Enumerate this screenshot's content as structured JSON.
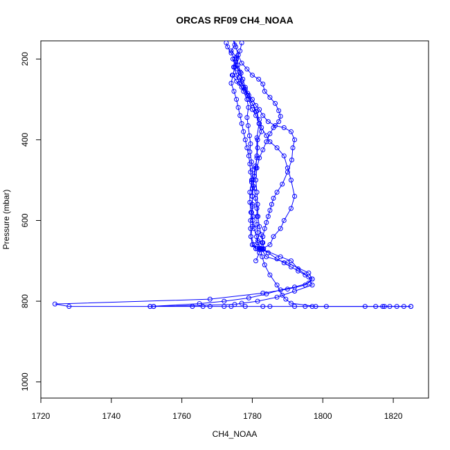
{
  "chart_data": {
    "type": "scatter",
    "title": "ORCAS RF09 CH4_NOAA",
    "xlabel": "CH4_NOAA",
    "ylabel": "Pressure (mbar)",
    "xlim": [
      1720,
      1830
    ],
    "ylim": [
      1040,
      155
    ],
    "y_reversed": true,
    "x_ticks": [
      1720,
      1740,
      1760,
      1780,
      1800,
      1820
    ],
    "y_ticks": [
      200,
      400,
      600,
      800,
      1000
    ],
    "grid": false,
    "legend": "none",
    "marker": "open-circle",
    "series": [
      {
        "color": "#0000ff",
        "points": [
          [
            1772.6,
            160
          ],
          [
            1773.0,
            170
          ],
          [
            1774.0,
            185
          ],
          [
            1775.0,
            200
          ],
          [
            1774.7,
            220
          ],
          [
            1775.6,
            240
          ],
          [
            1776.3,
            260
          ],
          [
            1777.5,
            280
          ],
          [
            1778.5,
            300
          ],
          [
            1778.9,
            320
          ],
          [
            1778.5,
            345
          ],
          [
            1778.8,
            365
          ],
          [
            1779.2,
            390
          ],
          [
            1779.5,
            410
          ],
          [
            1779.3,
            430
          ],
          [
            1779.8,
            455
          ],
          [
            1780.1,
            475
          ],
          [
            1780.1,
            500
          ],
          [
            1780.6,
            520
          ],
          [
            1780.9,
            545
          ],
          [
            1781.3,
            570
          ],
          [
            1781.3,
            590
          ],
          [
            1781.3,
            610
          ],
          [
            1781.6,
            630
          ],
          [
            1781.6,
            650
          ],
          [
            1781.5,
            670
          ],
          [
            1782.5,
            670
          ],
          [
            1784.0,
            690
          ],
          [
            1790.0,
            705
          ],
          [
            1796.0,
            730
          ],
          [
            1797.0,
            745
          ],
          [
            1795.0,
            760
          ],
          [
            1790.0,
            770
          ],
          [
            1783.0,
            780
          ],
          [
            1768.0,
            795
          ],
          [
            1724.0,
            807
          ],
          [
            1728.0,
            813
          ],
          [
            1751.0,
            813
          ],
          [
            1752.0,
            813
          ],
          [
            1763.0,
            813
          ],
          [
            1766.0,
            813
          ],
          [
            1768.0,
            813
          ],
          [
            1772.0,
            813
          ],
          [
            1774.0,
            813
          ],
          [
            1778.0,
            813
          ],
          [
            1783.0,
            813
          ],
          [
            1785.0,
            813
          ],
          [
            1792.0,
            813
          ],
          [
            1795.0,
            813
          ],
          [
            1797.0,
            813
          ],
          [
            1801.0,
            813
          ],
          [
            1812.0,
            813
          ],
          [
            1815.0,
            813
          ],
          [
            1817.0,
            813
          ],
          [
            1819.0,
            813
          ],
          [
            1821.0,
            813
          ],
          [
            1823.0,
            813
          ],
          [
            1825.0,
            813
          ]
        ]
      },
      {
        "color": "#0000ff",
        "points": [
          [
            1825.0,
            813
          ],
          [
            1817.5,
            813
          ],
          [
            1798.0,
            813
          ],
          [
            1791.0,
            805
          ],
          [
            1789.5,
            795
          ],
          [
            1788.5,
            785
          ],
          [
            1787.0,
            760
          ],
          [
            1785.0,
            735
          ],
          [
            1783.5,
            710
          ],
          [
            1782.8,
            690
          ],
          [
            1782.3,
            670
          ],
          [
            1781.6,
            655
          ],
          [
            1781.2,
            640
          ],
          [
            1780.5,
            620
          ],
          [
            1780.2,
            600
          ],
          [
            1779.6,
            580
          ],
          [
            1779.3,
            555
          ],
          [
            1779.3,
            530
          ],
          [
            1779.8,
            505
          ],
          [
            1780.6,
            490
          ],
          [
            1781.0,
            470
          ],
          [
            1781.3,
            440
          ],
          [
            1781.3,
            395
          ],
          [
            1781.9,
            360
          ],
          [
            1781.2,
            330
          ],
          [
            1780.0,
            310
          ],
          [
            1778.6,
            290
          ],
          [
            1777.5,
            270
          ],
          [
            1776.2,
            245
          ],
          [
            1775.8,
            225
          ],
          [
            1775.3,
            205
          ],
          [
            1776.0,
            190
          ],
          [
            1775.3,
            170
          ],
          [
            1774.8,
            150
          ]
        ]
      },
      {
        "color": "#0000ff",
        "points": [
          [
            1774.5,
            150
          ],
          [
            1775.0,
            165
          ],
          [
            1774.0,
            180
          ],
          [
            1775.5,
            195
          ],
          [
            1775.9,
            215
          ],
          [
            1776.8,
            235
          ],
          [
            1777.0,
            255
          ],
          [
            1778.0,
            275
          ],
          [
            1779.0,
            300
          ],
          [
            1780.0,
            325
          ],
          [
            1781.0,
            340
          ],
          [
            1782.0,
            360
          ],
          [
            1782.6,
            380
          ],
          [
            1781.5,
            400
          ],
          [
            1781.5,
            420
          ],
          [
            1781.3,
            445
          ],
          [
            1780.9,
            465
          ],
          [
            1780.5,
            490
          ],
          [
            1780.3,
            515
          ],
          [
            1780.0,
            540
          ],
          [
            1780.0,
            565
          ],
          [
            1780.2,
            590
          ],
          [
            1780.0,
            615
          ],
          [
            1779.6,
            640
          ],
          [
            1780.5,
            660
          ],
          [
            1781.0,
            670
          ],
          [
            1783.0,
            672
          ],
          [
            1788.0,
            690
          ],
          [
            1791.0,
            700
          ],
          [
            1793.0,
            720
          ],
          [
            1796.0,
            740
          ],
          [
            1797.0,
            760
          ],
          [
            1792.0,
            775
          ],
          [
            1787.0,
            790
          ],
          [
            1781.5,
            800
          ],
          [
            1777.0,
            805
          ],
          [
            1775.0,
            808
          ],
          [
            1752.0,
            813
          ]
        ]
      },
      {
        "color": "#0000ff",
        "points": [
          [
            1774.5,
            200
          ],
          [
            1775.4,
            215
          ],
          [
            1776.5,
            232
          ],
          [
            1777.3,
            250
          ],
          [
            1778.0,
            270
          ],
          [
            1779.0,
            290
          ],
          [
            1780.0,
            310
          ],
          [
            1781.0,
            330
          ],
          [
            1782.0,
            350
          ],
          [
            1782.6,
            370
          ],
          [
            1784.0,
            390
          ],
          [
            1785.0,
            405
          ],
          [
            1787.0,
            420
          ],
          [
            1789.0,
            440
          ],
          [
            1790.0,
            470
          ],
          [
            1791.0,
            500
          ],
          [
            1792.0,
            540
          ],
          [
            1791.0,
            570
          ],
          [
            1789.0,
            600
          ],
          [
            1788.0,
            620
          ],
          [
            1786.0,
            640
          ],
          [
            1785.0,
            660
          ],
          [
            1782.8,
            670
          ],
          [
            1782.0,
            680
          ],
          [
            1781.0,
            700
          ]
        ]
      },
      {
        "color": "#0000ff",
        "points": [
          [
            1774.3,
            240
          ],
          [
            1775.5,
            255
          ],
          [
            1777.0,
            270
          ],
          [
            1778.7,
            285
          ],
          [
            1780.0,
            300
          ],
          [
            1781.0,
            315
          ],
          [
            1782.0,
            325
          ],
          [
            1783.0,
            340
          ],
          [
            1784.5,
            355
          ],
          [
            1786.5,
            365
          ],
          [
            1789.0,
            370
          ],
          [
            1791.0,
            380
          ],
          [
            1792.0,
            400
          ],
          [
            1791.5,
            420
          ],
          [
            1791.2,
            450
          ],
          [
            1790.0,
            480
          ],
          [
            1788.5,
            510
          ],
          [
            1787.0,
            530
          ],
          [
            1786.0,
            545
          ],
          [
            1785.5,
            560
          ],
          [
            1785.0,
            575
          ],
          [
            1784.5,
            590
          ],
          [
            1784.0,
            605
          ],
          [
            1783.5,
            620
          ],
          [
            1783.0,
            640
          ],
          [
            1782.8,
            655
          ],
          [
            1782.6,
            670
          ]
        ]
      },
      {
        "color": "#0000ff",
        "points": [
          [
            1776.0,
            190
          ],
          [
            1777.0,
            210
          ],
          [
            1778.5,
            225
          ],
          [
            1780.0,
            240
          ],
          [
            1781.8,
            250
          ],
          [
            1783.0,
            262
          ],
          [
            1783.5,
            280
          ],
          [
            1785.0,
            295
          ],
          [
            1786.5,
            310
          ],
          [
            1787.5,
            328
          ],
          [
            1788.0,
            342
          ],
          [
            1787.5,
            355
          ],
          [
            1786.0,
            370
          ],
          [
            1785.0,
            385
          ],
          [
            1784.0,
            405
          ],
          [
            1783.0,
            425
          ],
          [
            1782.0,
            445
          ],
          [
            1781.3,
            470
          ],
          [
            1781.0,
            500
          ],
          [
            1781.3,
            530
          ],
          [
            1781.5,
            560
          ],
          [
            1781.6,
            590
          ],
          [
            1782.0,
            615
          ],
          [
            1782.5,
            635
          ],
          [
            1783.0,
            655
          ],
          [
            1783.2,
            670
          ]
        ]
      },
      {
        "color": "#0000ff",
        "points": [
          [
            1777.0,
            160
          ],
          [
            1776.5,
            180
          ],
          [
            1775.5,
            200
          ],
          [
            1775.0,
            220
          ],
          [
            1774.5,
            240
          ],
          [
            1774.0,
            260
          ],
          [
            1774.8,
            280
          ],
          [
            1775.5,
            300
          ],
          [
            1776.0,
            320
          ],
          [
            1776.5,
            340
          ],
          [
            1777.0,
            360
          ],
          [
            1777.5,
            380
          ],
          [
            1778.0,
            400
          ],
          [
            1778.5,
            420
          ],
          [
            1779.0,
            440
          ],
          [
            1779.3,
            460
          ],
          [
            1779.5,
            480
          ],
          [
            1779.8,
            500
          ],
          [
            1780.0,
            520
          ],
          [
            1780.0,
            540
          ],
          [
            1780.0,
            560
          ],
          [
            1779.8,
            580
          ],
          [
            1779.5,
            600
          ],
          [
            1779.5,
            620
          ],
          [
            1779.6,
            640
          ],
          [
            1780.0,
            660
          ],
          [
            1781.0,
            670
          ],
          [
            1782.0,
            672
          ]
        ]
      },
      {
        "color": "#0000ff",
        "points": [
          [
            1780.0,
            660
          ],
          [
            1782.0,
            668
          ],
          [
            1784.5,
            680
          ],
          [
            1787.0,
            695
          ],
          [
            1789.0,
            705
          ],
          [
            1791.0,
            715
          ],
          [
            1793.0,
            725
          ],
          [
            1795.0,
            735
          ],
          [
            1797.0,
            745
          ],
          [
            1796.0,
            755
          ],
          [
            1792.0,
            765
          ],
          [
            1788.0,
            772
          ],
          [
            1784.0,
            782
          ],
          [
            1779.0,
            792
          ],
          [
            1772.0,
            800
          ],
          [
            1765.0,
            806
          ],
          [
            1751.0,
            813
          ]
        ]
      }
    ]
  }
}
